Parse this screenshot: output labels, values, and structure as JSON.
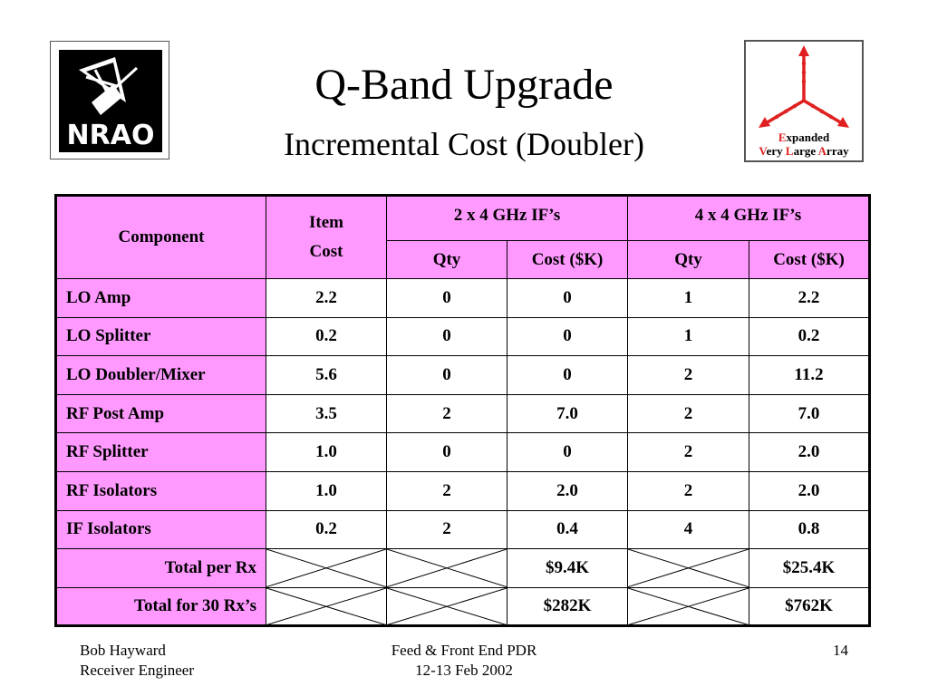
{
  "slide": {
    "title": "Q-Band Upgrade",
    "subtitle": "Incremental Cost (Doubler)"
  },
  "logos": {
    "nrao": {
      "text": "NRAO",
      "icon": "nrao-telescope-logo"
    },
    "evla": {
      "line1_caps": "E",
      "line1_rest": "xpanded",
      "line2": [
        {
          "cap": "V",
          "rest": "ery "
        },
        {
          "cap": "L",
          "rest": "arge "
        },
        {
          "cap": "A",
          "rest": "rray"
        }
      ],
      "icon": "evla-three-arm-logo",
      "arm_color": "#e02020",
      "arrow_color": "#e02020"
    }
  },
  "table": {
    "header": {
      "component": "Component",
      "item_cost_line1": "Item",
      "item_cost_line2": "Cost",
      "group1": "2 x 4 GHz IF’s",
      "group2": "4 x 4 GHz IF’s",
      "qty": "Qty",
      "cost": "Cost ($K)"
    },
    "rows": [
      {
        "component": "LO Amp",
        "item_cost": "2.2",
        "qty1": "0",
        "cost1": "0",
        "qty2": "1",
        "cost2": "2.2"
      },
      {
        "component": "LO Splitter",
        "item_cost": "0.2",
        "qty1": "0",
        "cost1": "0",
        "qty2": "1",
        "cost2": "0.2"
      },
      {
        "component": "LO Doubler/Mixer",
        "item_cost": "5.6",
        "qty1": "0",
        "cost1": "0",
        "qty2": "2",
        "cost2": "11.2"
      },
      {
        "component": "RF Post Amp",
        "item_cost": "3.5",
        "qty1": "2",
        "cost1": "7.0",
        "qty2": "2",
        "cost2": "7.0"
      },
      {
        "component": "RF Splitter",
        "item_cost": "1.0",
        "qty1": "0",
        "cost1": "0",
        "qty2": "2",
        "cost2": "2.0"
      },
      {
        "component": "RF Isolators",
        "item_cost": "1.0",
        "qty1": "2",
        "cost1": "2.0",
        "qty2": "2",
        "cost2": "2.0"
      },
      {
        "component": "IF Isolators",
        "item_cost": "0.2",
        "qty1": "2",
        "cost1": "0.4",
        "qty2": "4",
        "cost2": "0.8"
      }
    ],
    "totals": [
      {
        "label": "Total per Rx",
        "cost1": "$9.4K",
        "cost2": "$25.4K"
      },
      {
        "label": "Total for 30 Rx’s",
        "cost1": "$282K",
        "cost2": "$762K"
      }
    ],
    "colors": {
      "header_bg": "#ff99ff",
      "cell_bg": "#ffffff"
    }
  },
  "footer": {
    "author": "Bob Hayward",
    "role": "Receiver Engineer",
    "event": "Feed & Front End PDR",
    "date": "12-13 Feb 2002",
    "page": "14"
  }
}
